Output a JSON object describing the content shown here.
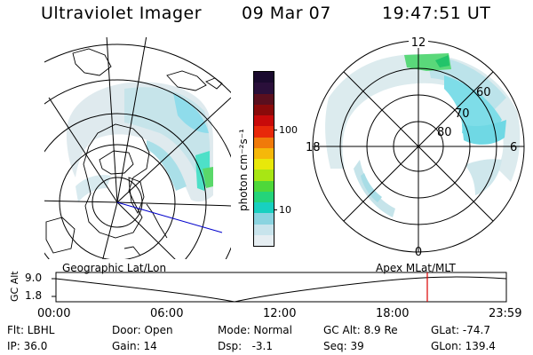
{
  "header": {
    "title": "Ultraviolet Imager",
    "date": "09 Mar 07",
    "time": "19:47:51 UT"
  },
  "colorbar": {
    "label": "photon cm⁻²s⁻¹",
    "tick_100": "100",
    "tick_10": "10",
    "colors_top_to_bottom": [
      "#1a0a2e",
      "#2a0f3a",
      "#5a0f1e",
      "#8a0a0a",
      "#c80a0a",
      "#e8280a",
      "#f07a0a",
      "#f5b80a",
      "#e8e80a",
      "#a8e614",
      "#4ed83a",
      "#24d47a",
      "#18d0c0",
      "#8ad4e0",
      "#c8e4ec",
      "#e6eef2"
    ]
  },
  "geographic_panel": {
    "label": "Geographic Lat/Lon"
  },
  "polar_panel": {
    "label": "Apex  MLat/MLT",
    "mlt_top": "12",
    "mlt_bottom": "0",
    "mlt_left": "18",
    "mlt_right": "6",
    "lat_60": "60",
    "lat_70": "70",
    "lat_80": "80"
  },
  "timeline": {
    "ylabel": "GC Alt",
    "ymax": "9.0",
    "ymin": "1.8",
    "ticks": [
      "00:00",
      "06:00",
      "12:00",
      "18:00",
      "23:59"
    ],
    "current_marker_color": "#dd0000"
  },
  "info": {
    "filter": "Flt: LBHL",
    "ip": "IP: 36.0",
    "door": "Door: Open",
    "gain": "Gain: 14",
    "mode": "Mode: Normal",
    "dsp": "Dsp:   -3.1",
    "gc_alt": "GC Alt: 8.9 Re",
    "seq": "Seq: 39",
    "glat": "GLat: -74.7",
    "glon": "GLon: 139.4"
  }
}
